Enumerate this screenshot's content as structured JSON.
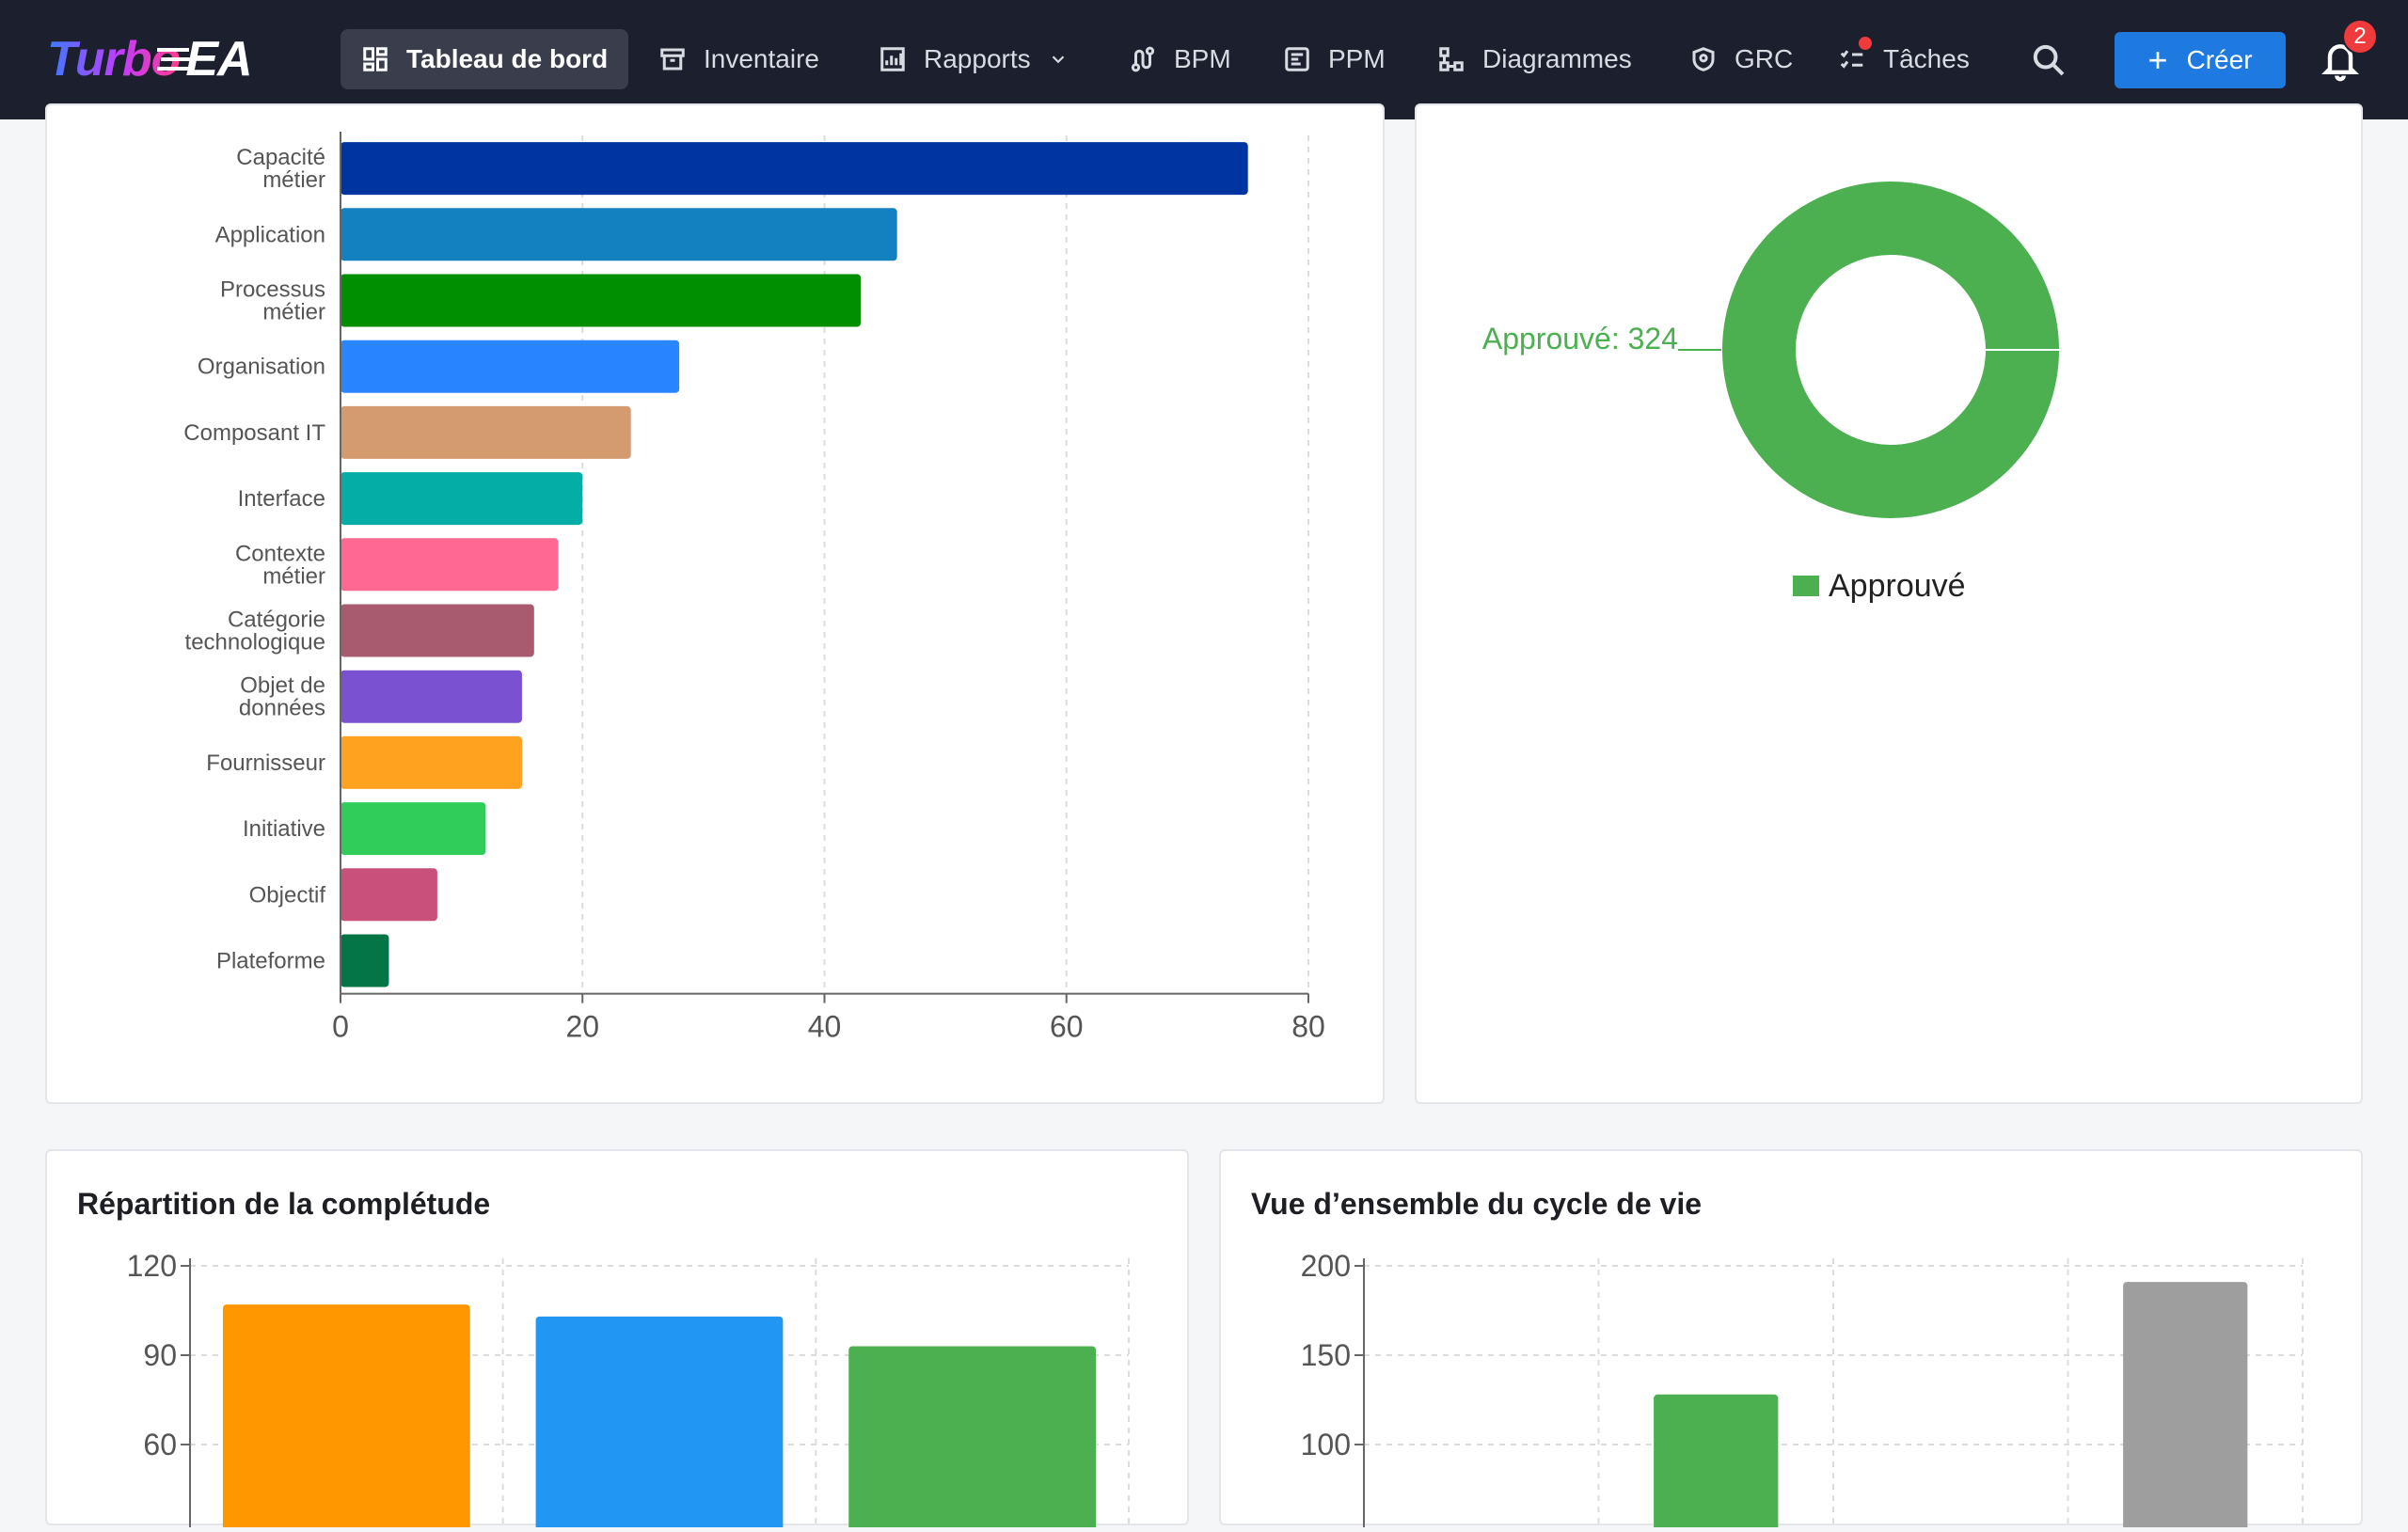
{
  "nav": {
    "logo_turbo": "Turbo",
    "logo_ea": "EA",
    "items": [
      {
        "label": "Tableau de bord",
        "icon": "dashboard-icon"
      },
      {
        "label": "Inventaire",
        "icon": "archive-icon"
      },
      {
        "label": "Rapports",
        "icon": "report-icon"
      },
      {
        "label": "BPM",
        "icon": "route-icon"
      },
      {
        "label": "PPM",
        "icon": "project-icon"
      },
      {
        "label": "Diagrammes",
        "icon": "diagram-icon"
      },
      {
        "label": "GRC",
        "icon": "shield-icon"
      },
      {
        "label": "Tâches",
        "icon": "checklist-icon"
      }
    ],
    "create_label": "Créer",
    "notification_count": "2"
  },
  "cards": {
    "completude_title": "Répartition de la complétude",
    "cycle_title": "Vue d’ensemble du cycle de vie"
  },
  "colors": {
    "nav_bg": "#1c1f2e",
    "accent": "#1e7ae0",
    "approved": "#4caf50"
  },
  "chart_data": [
    {
      "type": "bar",
      "orientation": "horizontal",
      "categories": [
        "Capacité métier",
        "Application",
        "Processus métier",
        "Organisation",
        "Composant IT",
        "Interface",
        "Contexte métier",
        "Catégorie technologique",
        "Objet de données",
        "Fournisseur",
        "Initiative",
        "Objectif",
        "Plateforme"
      ],
      "values": [
        75,
        46,
        43,
        28,
        24,
        20,
        18,
        16,
        15,
        15,
        12,
        8,
        4
      ],
      "colors": [
        "#0034a0",
        "#1380c0",
        "#008f00",
        "#2a86ff",
        "#d49a70",
        "#04aea7",
        "#ff6893",
        "#a85a6e",
        "#7a52d1",
        "#ffa21f",
        "#30cd5a",
        "#c8507a",
        "#047545"
      ],
      "xlim": [
        0,
        80
      ],
      "xticks": [
        0,
        20,
        40,
        60,
        80
      ],
      "grid": true
    },
    {
      "type": "pie",
      "donut": true,
      "labels": [
        "Approuvé"
      ],
      "values": [
        324
      ],
      "colors": [
        "#4caf50"
      ],
      "data_label": "Approuvé: 324",
      "legend": "bottom"
    },
    {
      "type": "bar",
      "title": "Répartition de la complétude",
      "values": [
        107,
        103,
        93
      ],
      "colors": [
        "#ff9800",
        "#2196f3",
        "#4caf50"
      ],
      "ylim": [
        0,
        120
      ],
      "yticks": [
        60,
        90,
        120
      ],
      "grid": true
    },
    {
      "type": "bar",
      "title": "Vue d’ensemble du cycle de vie",
      "values": [
        0,
        128,
        0,
        191
      ],
      "colors": [
        "#4caf50",
        "#4caf50",
        "#4caf50",
        "#9e9e9e"
      ],
      "ylim": [
        0,
        200
      ],
      "yticks": [
        100,
        150,
        200
      ],
      "grid": true
    }
  ]
}
